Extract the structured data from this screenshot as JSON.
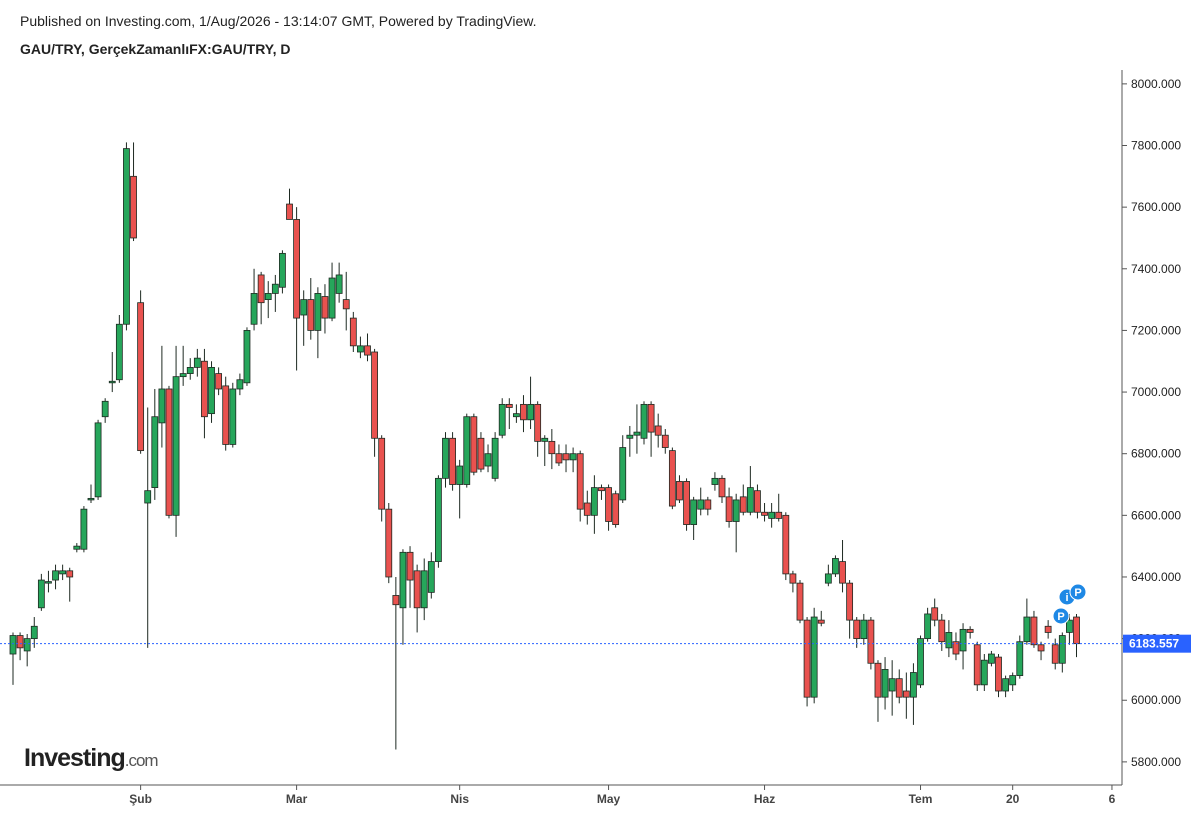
{
  "chart_data": {
    "type": "candlestick",
    "title": "Published on Investing.com, 1/Aug/2026 - 13:14:07 GMT, Powered by TradingView.",
    "subtitle": "GAU/TRY, GerçekZamanlıFX:GAU/TRY, D",
    "logo": "Investing",
    "logo_suffix": ".com",
    "events": [
      "i",
      "P",
      "P"
    ],
    "up_color": "#26a65b",
    "down_color": "#e9524f",
    "last_price_color": "#2962ff",
    "categories": [
      null,
      null,
      null,
      null,
      null,
      null,
      null,
      null,
      null,
      null,
      null,
      null,
      null,
      null,
      null,
      null,
      null,
      null,
      "Şub",
      null,
      null,
      null,
      null,
      null,
      null,
      null,
      null,
      null,
      null,
      null,
      null,
      null,
      null,
      null,
      null,
      null,
      null,
      null,
      null,
      null,
      "Mar",
      null,
      null,
      null,
      null,
      null,
      null,
      null,
      null,
      null,
      null,
      null,
      null,
      null,
      null,
      null,
      null,
      null,
      null,
      null,
      null,
      null,
      null,
      "Nis",
      null,
      null,
      null,
      null,
      null,
      null,
      null,
      null,
      null,
      null,
      null,
      null,
      null,
      null,
      null,
      null,
      null,
      null,
      null,
      null,
      "May",
      null,
      null,
      null,
      null,
      null,
      null,
      null,
      null,
      null,
      null,
      null,
      null,
      null,
      null,
      null,
      null,
      null,
      null,
      null,
      null,
      null,
      "Haz",
      null,
      null,
      null,
      null,
      null,
      null,
      null,
      null,
      null,
      null,
      null,
      null,
      null,
      null,
      null,
      null,
      null,
      null,
      null,
      null,
      null,
      "Tem",
      null,
      null,
      null,
      null,
      null,
      null,
      null,
      null,
      null,
      null,
      null,
      null,
      "20",
      null,
      null,
      null,
      null,
      null,
      null,
      null,
      null,
      null,
      null,
      null,
      null,
      null,
      "6"
    ],
    "open": [
      6150,
      6210,
      6160,
      6200,
      6300,
      6380,
      6390,
      6410,
      6420,
      6490,
      6490,
      6650,
      6660,
      6920,
      7030,
      7040,
      7220,
      7700,
      7290,
      6640,
      6690,
      6900,
      7010,
      6600,
      7050,
      7060,
      7080,
      7100,
      6930,
      7060,
      7020,
      6830,
      7010,
      7030,
      7220,
      7380,
      7300,
      7320,
      7340,
      7610,
      7560,
      7250,
      7300,
      7200,
      7310,
      7240,
      7320,
      7300,
      7240,
      7130,
      7150,
      7130,
      6850,
      6620,
      6340,
      6300,
      6480,
      6420,
      6300,
      6350,
      6450,
      6720,
      6850,
      6700,
      6700,
      6920,
      6850,
      6760,
      6720,
      6860,
      6960,
      6920,
      6960,
      6910,
      6960,
      6840,
      6840,
      6800,
      6800,
      6780,
      6800,
      6640,
      6600,
      6690,
      6690,
      6670,
      6650,
      6850,
      6860,
      6850,
      6960,
      6890,
      6860,
      6810,
      6710,
      6710,
      6570,
      6620,
      6650,
      6700,
      6720,
      6660,
      6580,
      6660,
      6610,
      6680,
      6610,
      6590,
      6610,
      6600,
      6410,
      6380,
      6260,
      6010,
      6260,
      6380,
      6410,
      6450,
      6380,
      6260,
      6200,
      6260,
      6120,
      6010,
      6030,
      6070,
      6030,
      6010,
      6050,
      6200,
      6300,
      6260,
      6170,
      6190,
      6160,
      6230,
      6180,
      6050,
      6120,
      6140,
      6030,
      6050,
      6080,
      6190,
      6270,
      6180,
      6240,
      6180,
      6120,
      6220,
      6270,
      null,
      null,
      null,
      null,
      null
    ],
    "high": [
      6220,
      6220,
      6215,
      6270,
      6410,
      6420,
      6440,
      6440,
      6430,
      6510,
      6630,
      6700,
      6910,
      6980,
      7130,
      7250,
      7810,
      7810,
      7330,
      6950,
      7010,
      7150,
      7020,
      7150,
      7150,
      7110,
      7140,
      7140,
      7100,
      7080,
      7050,
      7030,
      7060,
      7210,
      7400,
      7390,
      7360,
      7380,
      7460,
      7660,
      7600,
      7330,
      7370,
      7340,
      7350,
      7420,
      7420,
      7390,
      7260,
      7180,
      7190,
      7140,
      6860,
      6640,
      6400,
      6490,
      6500,
      6440,
      6460,
      6480,
      6730,
      6870,
      6870,
      6780,
      6930,
      6930,
      6870,
      6830,
      6870,
      6980,
      6980,
      6960,
      6990,
      7050,
      6970,
      6860,
      6880,
      6830,
      6830,
      6820,
      6810,
      6680,
      6730,
      6700,
      6700,
      6680,
      6860,
      6890,
      6960,
      6970,
      6970,
      6930,
      6880,
      6820,
      6730,
      6720,
      6660,
      6690,
      6660,
      6740,
      6730,
      6690,
      6670,
      6700,
      6760,
      6700,
      6640,
      6640,
      6670,
      6610,
      6420,
      6390,
      6270,
      6300,
      6290,
      6440,
      6470,
      6520,
      6390,
      6270,
      6280,
      6270,
      6130,
      6140,
      6130,
      6100,
      6090,
      6120,
      6210,
      6300,
      6330,
      6280,
      6260,
      6220,
      6250,
      6240,
      6190,
      6150,
      6160,
      6150,
      6080,
      6090,
      6210,
      6330,
      6290,
      6190,
      6260,
      6200,
      6220,
      6280,
      6280,
      null,
      null,
      null,
      null,
      null
    ],
    "low": [
      6050,
      6130,
      6110,
      6170,
      6290,
      6350,
      6360,
      6390,
      6320,
      6480,
      6480,
      6640,
      6650,
      6900,
      7000,
      7030,
      7200,
      7490,
      6800,
      6170,
      6650,
      6820,
      6590,
      6530,
      7020,
      7040,
      7050,
      6850,
      6900,
      6990,
      6810,
      6820,
      6990,
      7020,
      7200,
      7220,
      7240,
      7260,
      7320,
      7560,
      7070,
      7150,
      7170,
      7110,
      7190,
      7230,
      7290,
      7200,
      7130,
      7110,
      7100,
      6790,
      6580,
      6380,
      5840,
      6180,
      6300,
      6220,
      6260,
      6330,
      6430,
      6690,
      6680,
      6590,
      6690,
      6730,
      6740,
      6740,
      6710,
      6850,
      6880,
      6900,
      6870,
      6880,
      6790,
      6760,
      6750,
      6760,
      6740,
      6740,
      6580,
      6570,
      6540,
      6650,
      6550,
      6560,
      6640,
      6790,
      6800,
      6830,
      6790,
      6820,
      6800,
      6620,
      6640,
      6550,
      6520,
      6600,
      6600,
      6680,
      6640,
      6560,
      6480,
      6600,
      6600,
      6590,
      6580,
      6560,
      6580,
      6390,
      6350,
      6250,
      5980,
      5990,
      6240,
      6370,
      6400,
      6350,
      6200,
      6170,
      6180,
      6100,
      5930,
      5970,
      5950,
      5990,
      5940,
      5920,
      6040,
      6190,
      6240,
      6160,
      6140,
      6130,
      6100,
      6200,
      6030,
      6030,
      6110,
      6010,
      6010,
      6030,
      6070,
      6180,
      6170,
      6130,
      6200,
      6100,
      6090,
      6180,
      6140,
      null,
      null,
      null,
      null,
      null
    ],
    "close": [
      6210,
      6170,
      6200,
      6240,
      6390,
      6385,
      6420,
      6420,
      6400,
      6500,
      6620,
      6655,
      6900,
      6970,
      7035,
      7220,
      7790,
      7500,
      6810,
      6680,
      6920,
      7010,
      6600,
      7050,
      7060,
      7080,
      7110,
      6920,
      7080,
      7010,
      6830,
      7010,
      7040,
      7200,
      7320,
      7290,
      7320,
      7350,
      7450,
      7560,
      7240,
      7300,
      7200,
      7320,
      7240,
      7370,
      7380,
      7270,
      7150,
      7150,
      7120,
      6850,
      6620,
      6400,
      6310,
      6480,
      6390,
      6300,
      6420,
      6450,
      6720,
      6850,
      6700,
      6760,
      6920,
      6740,
      6750,
      6800,
      6850,
      6960,
      6950,
      6930,
      6910,
      6960,
      6840,
      6850,
      6800,
      6770,
      6780,
      6800,
      6620,
      6600,
      6690,
      6680,
      6580,
      6570,
      6820,
      6860,
      6870,
      6960,
      6870,
      6860,
      6820,
      6630,
      6650,
      6570,
      6650,
      6650,
      6620,
      6720,
      6660,
      6580,
      6650,
      6610,
      6690,
      6610,
      6600,
      6610,
      6590,
      6410,
      6380,
      6260,
      6010,
      6270,
      6250,
      6410,
      6460,
      6380,
      6260,
      6200,
      6260,
      6120,
      6010,
      6100,
      6070,
      6010,
      6010,
      6090,
      6200,
      6280,
      6260,
      6190,
      6220,
      6150,
      6230,
      6220,
      6050,
      6130,
      6150,
      6030,
      6070,
      6080,
      6190,
      6270,
      6180,
      6160,
      6220,
      6120,
      6210,
      6260,
      6183.557,
      null,
      null,
      null,
      null,
      null
    ],
    "ylim": [
      5725,
      8045
    ],
    "yticks": [
      {
        "value": 5800,
        "label": "5800.000"
      },
      {
        "value": 6000,
        "label": "6000.000"
      },
      {
        "value": 6200,
        "label": "6200.000"
      },
      {
        "value": 6400,
        "label": "6400.000"
      },
      {
        "value": 6600,
        "label": "6600.000"
      },
      {
        "value": 6800,
        "label": "6800.000"
      },
      {
        "value": 7000,
        "label": "7000.000"
      },
      {
        "value": 7200,
        "label": "7200.000"
      },
      {
        "value": 7400,
        "label": "7400.000"
      },
      {
        "value": 7600,
        "label": "7600.000"
      },
      {
        "value": 7800,
        "label": "7800.000"
      },
      {
        "value": 8000,
        "label": "8000.000"
      }
    ]
  }
}
